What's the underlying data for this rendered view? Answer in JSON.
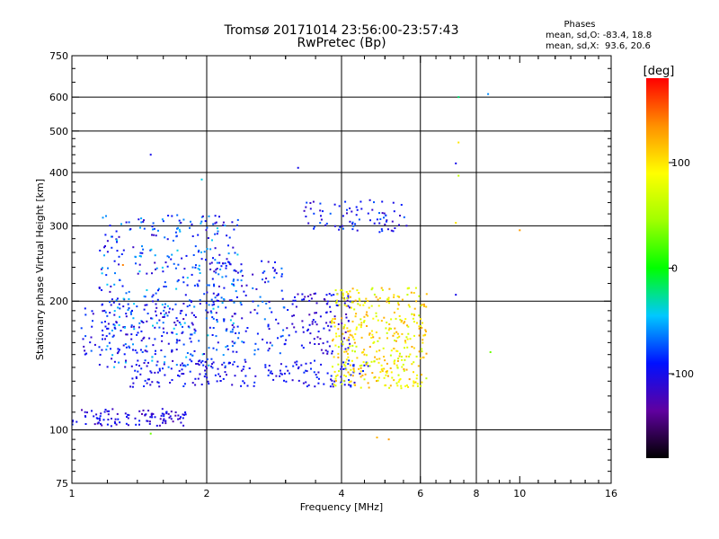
{
  "header": {
    "title_line1": "Tromsø 20171014 23:56:00-23:57:43",
    "title_line2": "RwPretec (Bp)",
    "phases_label": "Phases",
    "stat_o": "mean, sd,O: -83.4, 18.8",
    "stat_x": "mean, sd,X:  93.6, 20.6"
  },
  "colorbar": {
    "unit_label": "[deg]",
    "range": [
      -180,
      180
    ],
    "tick_values": [
      100,
      0,
      -100
    ],
    "tick_labels": [
      "100",
      "0",
      "-100"
    ]
  },
  "chart_data": {
    "type": "scatter",
    "xlabel": "Frequency [MHz]",
    "ylabel": "Stationary phase Virtual Height [km]",
    "x_scale": "log",
    "y_scale": "log",
    "xlim": [
      1,
      16
    ],
    "ylim": [
      75,
      750
    ],
    "x_ticks": [
      1,
      2,
      4,
      6,
      8,
      10,
      16
    ],
    "x_tick_labels": [
      "1",
      "2",
      "4",
      "6",
      "8",
      "10",
      "16"
    ],
    "x_major_grid": [
      2,
      4,
      6,
      8
    ],
    "y_ticks": [
      75,
      100,
      200,
      300,
      400,
      500,
      600,
      750
    ],
    "y_tick_labels": [
      "75",
      "100",
      "200",
      "300",
      "400",
      "500",
      "600",
      "750"
    ],
    "y_major_grid": [
      100,
      200,
      300,
      400,
      500,
      600
    ],
    "grid": true,
    "point_color_encodes": "phase [deg]",
    "clusters": [
      {
        "desc": "E layer trace",
        "x_range": [
          1.0,
          1.8
        ],
        "y_range": [
          102,
          112
        ],
        "phase": [
          -130,
          -85
        ],
        "n": 110
      },
      {
        "desc": "O-mode F trace",
        "x_range": [
          1.35,
          4.6
        ],
        "y_range": [
          126,
          146
        ],
        "phase": [
          -115,
          -80
        ],
        "n": 190
      },
      {
        "desc": "spread echoes low band",
        "x_range": [
          1.15,
          2.4
        ],
        "y_range": [
          140,
          320
        ],
        "phase": [
          -120,
          -40
        ],
        "n": 420
      },
      {
        "desc": "spread echoes mid band",
        "x_range": [
          2.0,
          3.0
        ],
        "y_range": [
          150,
          250
        ],
        "phase": [
          -120,
          -60
        ],
        "n": 120
      },
      {
        "desc": "spread O-mode upper",
        "x_range": [
          3.0,
          4.2
        ],
        "y_range": [
          150,
          210
        ],
        "phase": [
          -125,
          -85
        ],
        "n": 110
      },
      {
        "desc": "upper O trace",
        "x_range": [
          3.3,
          5.6
        ],
        "y_range": [
          290,
          345
        ],
        "phase": [
          -120,
          -70
        ],
        "n": 80
      },
      {
        "desc": "X-mode spread",
        "x_range": [
          3.8,
          6.2
        ],
        "y_range": [
          125,
          215
        ],
        "phase": [
          60,
          130
        ],
        "n": 380
      },
      {
        "desc": "low-band lower spread",
        "x_range": [
          1.05,
          1.9
        ],
        "y_range": [
          150,
          200
        ],
        "phase": [
          -120,
          -70
        ],
        "n": 120
      }
    ],
    "isolated_points": [
      {
        "x": 7.3,
        "y": 600,
        "phase": -20
      },
      {
        "x": 8.5,
        "y": 610,
        "phase": -60
      },
      {
        "x": 7.3,
        "y": 470,
        "phase": 100
      },
      {
        "x": 7.2,
        "y": 420,
        "phase": -100
      },
      {
        "x": 7.3,
        "y": 393,
        "phase": 60
      },
      {
        "x": 7.2,
        "y": 305,
        "phase": 100
      },
      {
        "x": 10.0,
        "y": 293,
        "phase": 130
      },
      {
        "x": 7.2,
        "y": 207,
        "phase": -100
      },
      {
        "x": 8.6,
        "y": 152,
        "phase": 30
      },
      {
        "x": 1.5,
        "y": 440,
        "phase": -100
      },
      {
        "x": 3.2,
        "y": 410,
        "phase": -100
      },
      {
        "x": 1.5,
        "y": 98,
        "phase": 30
      },
      {
        "x": 4.8,
        "y": 96,
        "phase": 120
      },
      {
        "x": 5.1,
        "y": 95,
        "phase": 130
      },
      {
        "x": 1.3,
        "y": 243,
        "phase": 140
      },
      {
        "x": 1.95,
        "y": 385,
        "phase": -40
      }
    ]
  }
}
